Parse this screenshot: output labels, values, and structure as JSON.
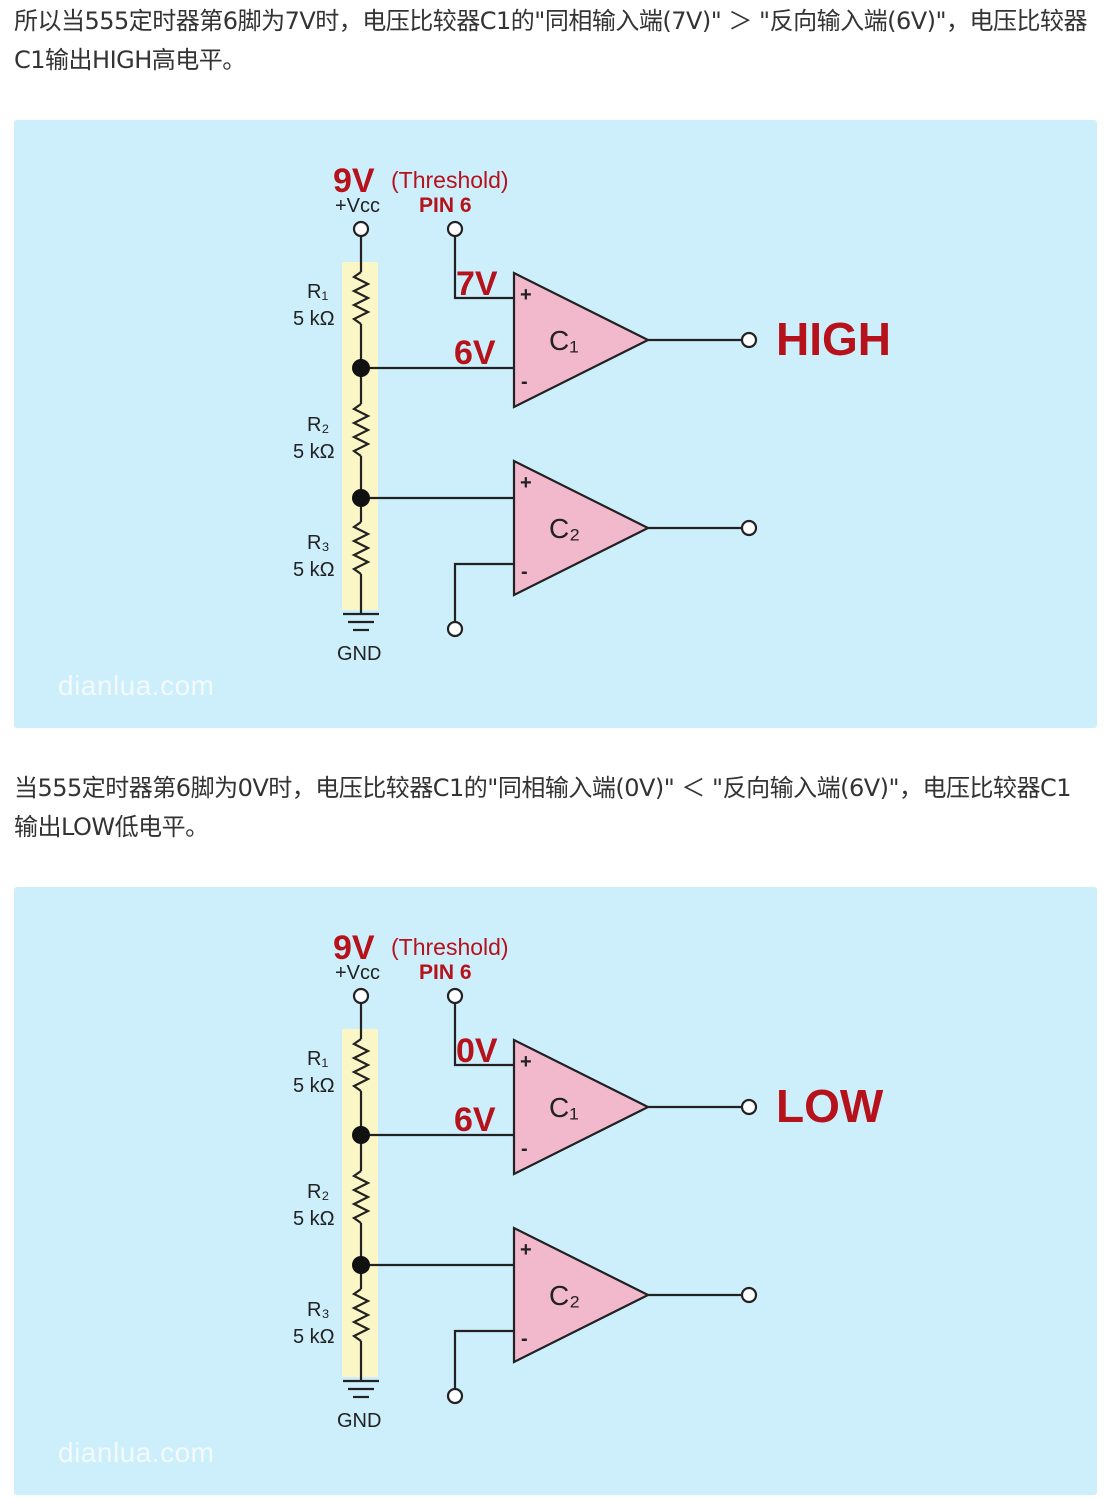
{
  "paragraph_1": "所以当555定时器第6脚为7V时，电压比较器C1的\"同相输入端(7V)\" ＞ \"反向输入端(6V)\"，电压比较器C1输出HIGH高电平。",
  "paragraph_2": "当555定时器第6脚为0V时，电压比较器C1的\"同相输入端(0V)\" ＜ \"反向输入端(6V)\"，电压比较器C1输出LOW低电平。",
  "colors": {
    "panel_bg": "#cdeefb",
    "label_red": "#b5121b",
    "comparator_fill": "#f2b8cc",
    "resistor_strip": "#fbf6c6"
  },
  "diagrams": [
    {
      "supply_voltage": "9V",
      "threshold_label": "(Threshold)",
      "vcc_label": "+Vcc",
      "pin_label": "PIN 6",
      "pin_voltage": "7V",
      "reference_voltage": "6V",
      "r1_name": "R₁",
      "r1_value": "5 kΩ",
      "r2_name": "R₂",
      "r2_value": "5 kΩ",
      "r3_name": "R₃",
      "r3_value": "5 kΩ",
      "c1_name": "C₁",
      "c2_name": "C₂",
      "plus": "+",
      "minus": "-",
      "gnd_label": "GND",
      "output_state": "HIGH",
      "watermark": "dianlua.com"
    },
    {
      "supply_voltage": "9V",
      "threshold_label": "(Threshold)",
      "vcc_label": "+Vcc",
      "pin_label": "PIN 6",
      "pin_voltage": "0V",
      "reference_voltage": "6V",
      "r1_name": "R₁",
      "r1_value": "5 kΩ",
      "r2_name": "R₂",
      "r2_value": "5 kΩ",
      "r3_name": "R₃",
      "r3_value": "5 kΩ",
      "c1_name": "C₁",
      "c2_name": "C₂",
      "plus": "+",
      "minus": "-",
      "gnd_label": "GND",
      "output_state": "LOW",
      "watermark": "dianlua.com"
    }
  ]
}
